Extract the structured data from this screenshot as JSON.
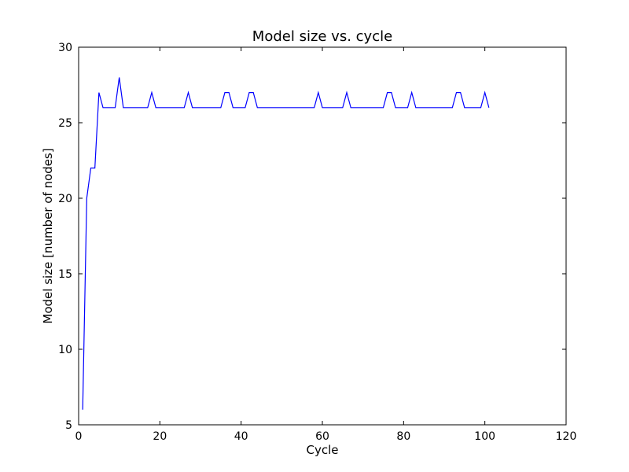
{
  "chart_data": {
    "type": "line",
    "title": "Model size vs. cycle",
    "xlabel": "Cycle",
    "ylabel": "Model size [number of nodes]",
    "xlim": [
      0,
      120
    ],
    "ylim": [
      5,
      30
    ],
    "xticks": [
      0,
      20,
      40,
      60,
      80,
      100,
      120
    ],
    "yticks": [
      5,
      10,
      15,
      20,
      25,
      30
    ],
    "grid": false,
    "series": [
      {
        "color": "#0000ff",
        "x": [
          1,
          2,
          3,
          4,
          5,
          6,
          7,
          8,
          9,
          10,
          11,
          12,
          13,
          14,
          15,
          16,
          17,
          18,
          19,
          20,
          21,
          22,
          23,
          24,
          25,
          26,
          27,
          28,
          29,
          30,
          31,
          32,
          33,
          34,
          35,
          36,
          37,
          38,
          39,
          40,
          41,
          42,
          43,
          44,
          45,
          46,
          47,
          48,
          49,
          50,
          51,
          52,
          53,
          54,
          55,
          56,
          57,
          58,
          59,
          60,
          61,
          62,
          63,
          64,
          65,
          66,
          67,
          68,
          69,
          70,
          71,
          72,
          73,
          74,
          75,
          76,
          77,
          78,
          79,
          80,
          81,
          82,
          83,
          84,
          85,
          86,
          87,
          88,
          89,
          90,
          91,
          92,
          93,
          94,
          95,
          96,
          97,
          98,
          99,
          100,
          101
        ],
        "y": [
          6,
          20,
          22,
          22,
          27,
          26,
          26,
          26,
          26,
          28,
          26,
          26,
          26,
          26,
          26,
          26,
          26,
          27,
          26,
          26,
          26,
          26,
          26,
          26,
          26,
          26,
          27,
          26,
          26,
          26,
          26,
          26,
          26,
          26,
          26,
          27,
          27,
          26,
          26,
          26,
          26,
          27,
          27,
          26,
          26,
          26,
          26,
          26,
          26,
          26,
          26,
          26,
          26,
          26,
          26,
          26,
          26,
          26,
          27,
          26,
          26,
          26,
          26,
          26,
          26,
          27,
          26,
          26,
          26,
          26,
          26,
          26,
          26,
          26,
          26,
          27,
          27,
          26,
          26,
          26,
          26,
          27,
          26,
          26,
          26,
          26,
          26,
          26,
          26,
          26,
          26,
          26,
          27,
          27,
          26,
          26,
          26,
          26,
          26,
          27,
          26
        ]
      }
    ]
  }
}
